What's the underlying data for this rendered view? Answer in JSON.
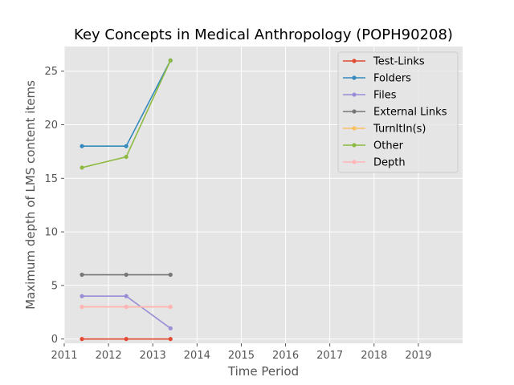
{
  "chart_data": {
    "type": "line",
    "title": "Key Concepts in Medical Anthropology (POPH90208)",
    "xlabel": "Time Period",
    "ylabel": "Maximum depth of LMS content items",
    "xlim": [
      2011,
      2020
    ],
    "ylim": [
      -0.4,
      27.3
    ],
    "x_ticks": [
      2011,
      2012,
      2013,
      2014,
      2015,
      2016,
      2017,
      2018,
      2019
    ],
    "y_ticks": [
      0,
      5,
      10,
      15,
      20,
      25
    ],
    "x": [
      2011.4,
      2012.4,
      2013.4
    ],
    "grid": true,
    "legend_position": "top-right",
    "series": [
      {
        "name": "Test-Links",
        "color": "#E24A33",
        "values": [
          0,
          0,
          0
        ]
      },
      {
        "name": "Folders",
        "color": "#348ABD",
        "values": [
          18,
          18,
          26
        ]
      },
      {
        "name": "Files",
        "color": "#988ED5",
        "values": [
          4,
          4,
          1
        ]
      },
      {
        "name": "External Links",
        "color": "#777777",
        "values": [
          6,
          6,
          6
        ]
      },
      {
        "name": "TurnItIn(s)",
        "color": "#FBC15E",
        "values": [
          3,
          3,
          3
        ]
      },
      {
        "name": "Other",
        "color": "#8EBA42",
        "values": [
          16,
          17,
          26
        ]
      },
      {
        "name": "Depth",
        "color": "#FFB5B8",
        "values": [
          3,
          3,
          3
        ]
      }
    ]
  }
}
